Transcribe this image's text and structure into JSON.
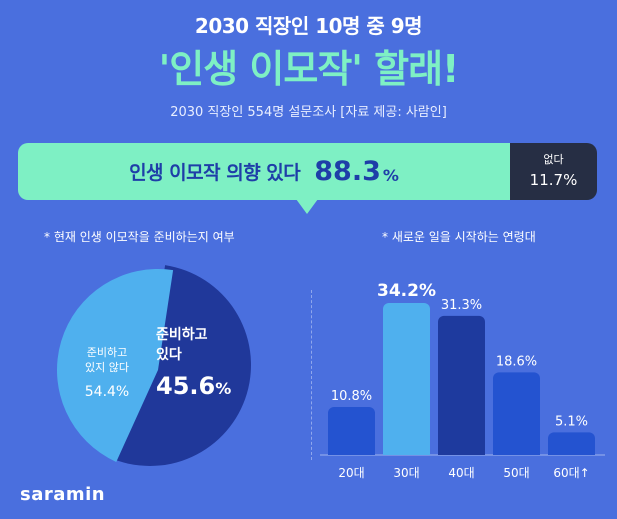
{
  "header": {
    "subtitle": "2030 직장인 10명 중 9명",
    "title": "'인생 이모작' 할래!",
    "source": "2030 직장인 554명 설문조사 [자료 제공: 사람인]"
  },
  "intent": {
    "yes_label": "인생 이모작 의향 있다",
    "yes_value": "88.3",
    "yes_unit": "%",
    "no_label": "없다",
    "no_value": "11.7%"
  },
  "pie_section": {
    "title": "* 현재 인생 이모작을 준비하는지 여부",
    "not_preparing_label_line1": "준비하고",
    "not_preparing_label_line2": "있지 않다",
    "not_preparing_value": "54.4%",
    "preparing_label_line1": "준비하고",
    "preparing_label_line2": "있다",
    "preparing_value": "45.6",
    "preparing_unit": "%"
  },
  "bar_section": {
    "title": "* 새로운 일을 시작하는 연령대"
  },
  "colors": {
    "background": "#4a6fde",
    "accent_mint": "#7ef0c4",
    "dark": "#262e44",
    "pie_not": "#20389a",
    "pie_yes": "#4fb0ee",
    "bar_highlight": "#4fb0ee",
    "bar_normal": "#2453d0",
    "bar_dark": "#1e3a9e"
  },
  "chart_data": [
    {
      "type": "pie",
      "title": "* 현재 인생 이모작을 준비하는지 여부",
      "slices": [
        {
          "label": "준비하고 있지 않다",
          "value": 54.4
        },
        {
          "label": "준비하고 있다",
          "value": 45.6
        }
      ]
    },
    {
      "type": "bar",
      "title": "* 새로운 일을 시작하는 연령대",
      "categories": [
        "20대",
        "30대",
        "40대",
        "50대",
        "60대↑"
      ],
      "values": [
        10.8,
        34.2,
        31.3,
        18.6,
        5.1
      ],
      "labels": [
        "10.8%",
        "34.2%",
        "31.3%",
        "18.6%",
        "5.1%"
      ],
      "ylim": [
        0,
        36
      ]
    }
  ],
  "footer": {
    "logo": "saramin"
  }
}
